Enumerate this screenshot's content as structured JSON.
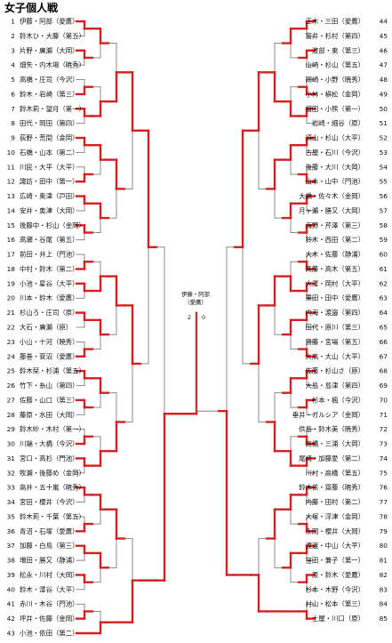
{
  "title": "女子個人戦",
  "colors": {
    "win": "#d42020",
    "loss": "#6f6f6f",
    "text": "#111111"
  },
  "left": {
    "entries": [
      {
        "seed": "1",
        "name": "伊藤・阿部（愛鷹）"
      },
      {
        "seed": "2",
        "name": "鈴木ひ・大藤（第五）"
      },
      {
        "seed": "3",
        "name": "片野・廣瀬（大岡）"
      },
      {
        "seed": "4",
        "name": "畑矢・内木場（暁秀）"
      },
      {
        "seed": "5",
        "name": "高橋・庄司（今沢）"
      },
      {
        "seed": "6",
        "name": "鈴木・岩崎（第三）"
      },
      {
        "seed": "7",
        "name": "鈴木莉・望月（第一）"
      },
      {
        "seed": "8",
        "name": "田代・岡田（第四）"
      },
      {
        "seed": "9",
        "name": "荻野・荒間（金岡）"
      },
      {
        "seed": "10",
        "name": "石橋・山本（第二）"
      },
      {
        "seed": "11",
        "name": "川民・大平（大平）"
      },
      {
        "seed": "12",
        "name": "諏訪・田中（第一）"
      },
      {
        "seed": "13",
        "name": "広崎・奥津（戸田）"
      },
      {
        "seed": "14",
        "name": "安井・奥津（大岡）"
      },
      {
        "seed": "15",
        "name": "後藤中・杉山（金岡）"
      },
      {
        "seed": "16",
        "name": "高瀬・谷尾（第五）"
      },
      {
        "seed": "17",
        "name": "前田・井上（門池）"
      },
      {
        "seed": "18",
        "name": "中村・鈴木（第二）"
      },
      {
        "seed": "19",
        "name": "小池・星谷（大平）"
      },
      {
        "seed": "20",
        "name": "川本・鈴木（愛鷹）"
      },
      {
        "seed": "21",
        "name": "杉山ろ・庄司（原）"
      },
      {
        "seed": "22",
        "name": "大石・廣瀬（原）"
      },
      {
        "seed": "23",
        "name": "小山・十河（暁秀）"
      },
      {
        "seed": "24",
        "name": "藤巻・菅沼（愛鷹）"
      },
      {
        "seed": "25",
        "name": "鈴木栞・杉浦（第五）"
      },
      {
        "seed": "26",
        "name": "竹下・糸山（第四）"
      },
      {
        "seed": "27",
        "name": "佐藤・山口（第三）"
      },
      {
        "seed": "28",
        "name": "藤原・水田（大岡）"
      },
      {
        "seed": "29",
        "name": "鈴木紗・木村（第一）"
      },
      {
        "seed": "30",
        "name": "川端・大橋（今沢）"
      },
      {
        "seed": "31",
        "name": "宮口・高杉（門池）"
      },
      {
        "seed": "32",
        "name": "牧瀬・後藤め（金岡）"
      },
      {
        "seed": "33",
        "name": "高井・五十嵐（暁秀）"
      },
      {
        "seed": "34",
        "name": "宮田・櫻井（今沢）"
      },
      {
        "seed": "35",
        "name": "鈴木莉・千葉（第五）"
      },
      {
        "seed": "36",
        "name": "青沼・石塚（愛鷹）"
      },
      {
        "seed": "37",
        "name": "加藤・白鳥（第三）"
      },
      {
        "seed": "38",
        "name": "増田・勝又（静浦）"
      },
      {
        "seed": "39",
        "name": "松永・川村（大岡）"
      },
      {
        "seed": "40",
        "name": "鈴木・澤谷（大平）"
      },
      {
        "seed": "41",
        "name": "赤川・木谷（門池）"
      },
      {
        "seed": "42",
        "name": "坪井・佐藤（金岡）"
      },
      {
        "seed": "43",
        "name": "小池・依田（第二）"
      }
    ]
  },
  "right": {
    "entries": [
      {
        "seed": "44",
        "name": "正木・三田（愛鷹）"
      },
      {
        "seed": "45",
        "name": "富井・杉村（第四）"
      },
      {
        "seed": "46",
        "name": "渡部・東（第三）"
      },
      {
        "seed": "47",
        "name": "山崎・杉山（第五）"
      },
      {
        "seed": "48",
        "name": "岡崎・小野（暁秀）"
      },
      {
        "seed": "49",
        "name": "小林・槇松（金岡）"
      },
      {
        "seed": "50",
        "name": "増田・小熊（第一）"
      },
      {
        "seed": "51",
        "name": "岩崎・細谷（原）"
      },
      {
        "seed": "52",
        "name": "須山・杉山（大平）"
      },
      {
        "seed": "53",
        "name": "古屋・石川（今沢）"
      },
      {
        "seed": "54",
        "name": "後藤・大川（大岡）"
      },
      {
        "seed": "55",
        "name": "山本・山中（門池）"
      },
      {
        "seed": "56",
        "name": "大橋・佐々木（金岡）"
      },
      {
        "seed": "57",
        "name": "月ヶ瀬・勝又（大岡）"
      },
      {
        "seed": "58",
        "name": "海野・芹澤（第三）"
      },
      {
        "seed": "59",
        "name": "鈴木・西田（第二）"
      },
      {
        "seed": "60",
        "name": "大木・佐藤（静浦）"
      },
      {
        "seed": "61",
        "name": "髙藤・高木（第五）"
      },
      {
        "seed": "62",
        "name": "大澤・岡村（大平）"
      },
      {
        "seed": "63",
        "name": "栗田・田中（愛鷹）"
      },
      {
        "seed": "64",
        "name": "内海・渡邉（第四）"
      },
      {
        "seed": "65",
        "name": "田代・原川（第三）"
      },
      {
        "seed": "66",
        "name": "齋藤・宮場（第五）"
      },
      {
        "seed": "67",
        "name": "大高・大山（大平）"
      },
      {
        "seed": "68",
        "name": "佐藤・杉山さ（原）"
      },
      {
        "seed": "69",
        "name": "大島・島津（第四）"
      },
      {
        "seed": "70",
        "name": "杉本・楓（今沢）"
      },
      {
        "seed": "71",
        "name": "垂井・ガルシア（金岡）"
      },
      {
        "seed": "72",
        "name": "供島・鈴木美（暁秀）"
      },
      {
        "seed": "73",
        "name": "高橋・三浦（大岡）"
      },
      {
        "seed": "74",
        "name": "尾崎・加藤愛（第二）"
      },
      {
        "seed": "75",
        "name": "川村・高橋（第五）"
      },
      {
        "seed": "76",
        "name": "鈴木依・齋藤（暁秀）"
      },
      {
        "seed": "77",
        "name": "内藤・田村（第二）"
      },
      {
        "seed": "78",
        "name": "大塚・浮津（金岡）"
      },
      {
        "seed": "79",
        "name": "永岡・櫻井（大岡）"
      },
      {
        "seed": "80",
        "name": "渡邊・中山（大平）"
      },
      {
        "seed": "81",
        "name": "窪田・兼子（第一）"
      },
      {
        "seed": "82",
        "name": "原・鈴木（愛鷹）"
      },
      {
        "seed": "83",
        "name": "杉本・木野（今沢）"
      },
      {
        "seed": "84",
        "name": "村山・松本（第三）"
      },
      {
        "seed": "85",
        "name": "土屋・川口（原）"
      }
    ]
  },
  "champion": {
    "line1": "伊藤・阿部",
    "line2": "（愛鷹）"
  },
  "final": {
    "left_score": "2",
    "right_score": "0"
  }
}
